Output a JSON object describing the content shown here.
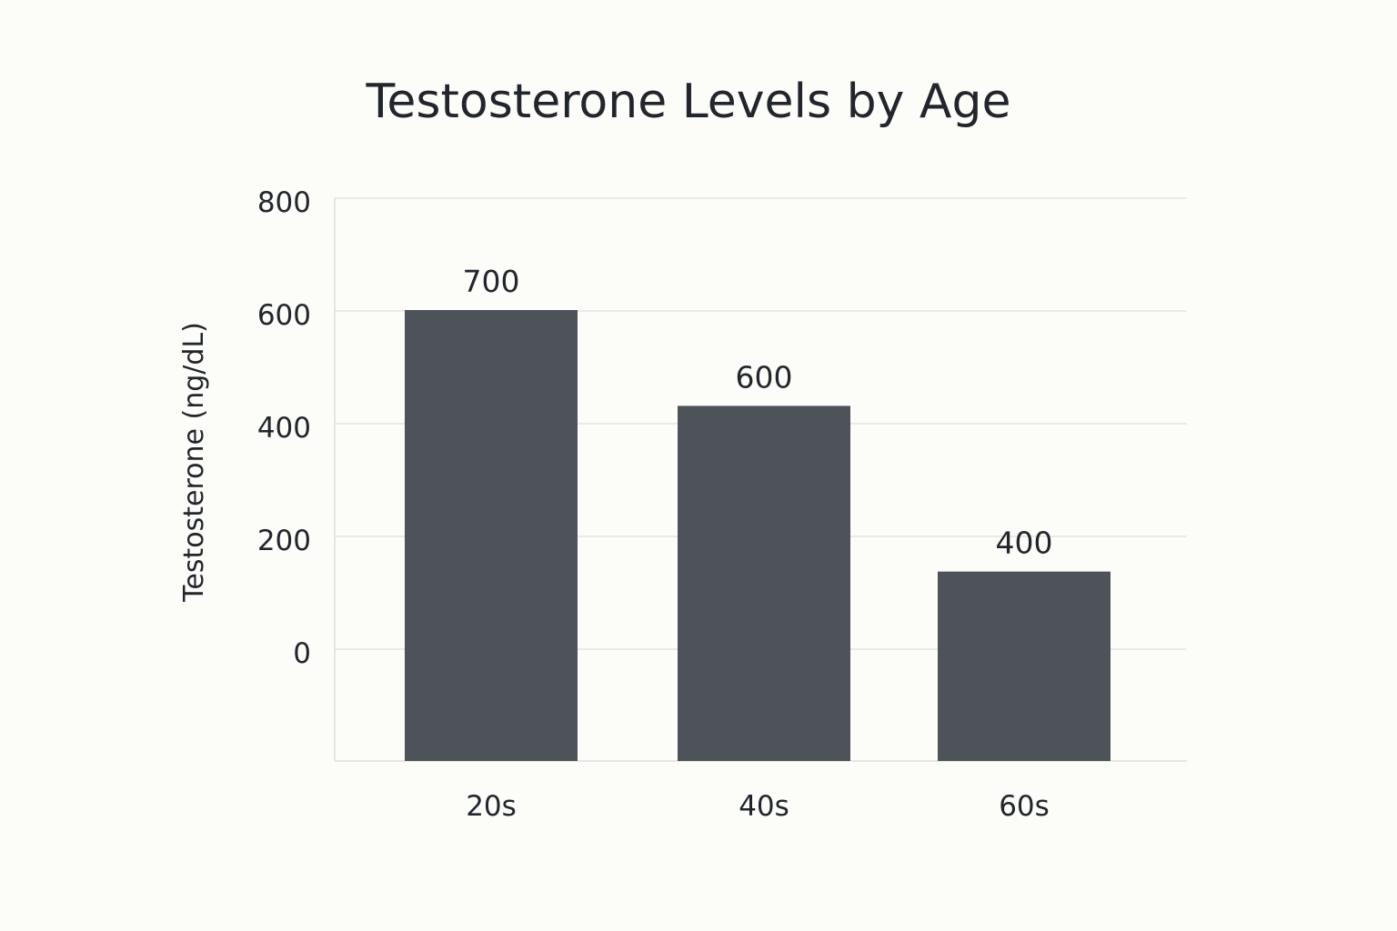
{
  "chart_data": {
    "type": "bar",
    "title": "Testosterone Levels by Age",
    "xlabel": "",
    "ylabel": "Testosterone (ng/dL)",
    "categories": [
      "20s",
      "40s",
      "60s"
    ],
    "values": [
      700,
      600,
      400
    ],
    "value_labels": [
      "700",
      "600",
      "400"
    ],
    "y_ticks": [
      "800",
      "600",
      "400",
      "200",
      "0"
    ],
    "ylim": [
      0,
      800
    ],
    "grid": true,
    "bar_color": "#4e535a"
  }
}
